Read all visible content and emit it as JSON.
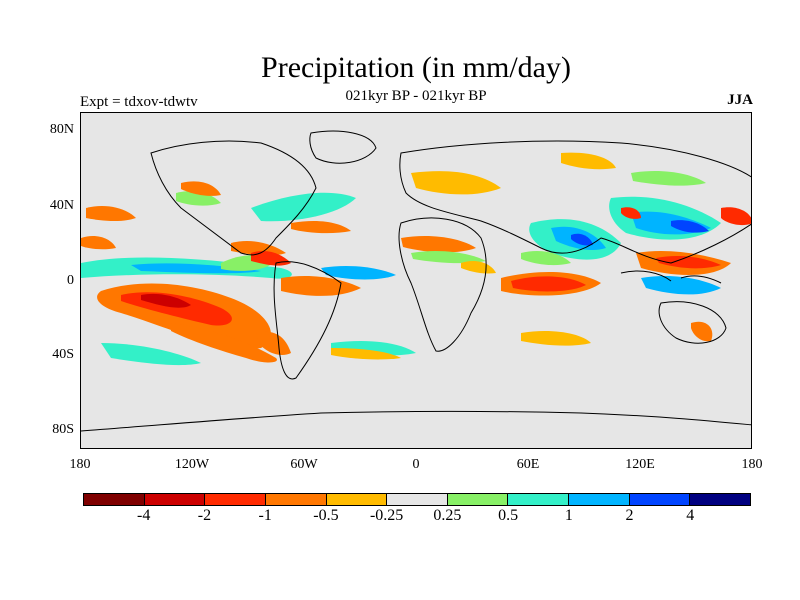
{
  "title": "Precipitation (in mm/day)",
  "subtitle": "021kyr BP - 021kyr BP",
  "left_label": "Expt = tdxov-tdwtv",
  "right_label": "JJA",
  "axes": {
    "y_ticks": [
      "80N",
      "40N",
      "0",
      "40S",
      "80S"
    ],
    "x_ticks": [
      "180",
      "120W",
      "60W",
      "0",
      "60E",
      "120E",
      "180"
    ]
  },
  "colorbar": {
    "colors": [
      "#7f0000",
      "#cc0000",
      "#ff2a00",
      "#ff7700",
      "#ffbb00",
      "#e6e6e6",
      "#88f066",
      "#33f0c8",
      "#00b4ff",
      "#0044ff",
      "#000080"
    ],
    "labels": [
      "-4",
      "-2",
      "-1",
      "-0.5",
      "-0.25",
      "0.25",
      "0.5",
      "1",
      "2",
      "4"
    ]
  },
  "map": {
    "land_line_color": "#000000",
    "background": "#e6e6e6"
  }
}
